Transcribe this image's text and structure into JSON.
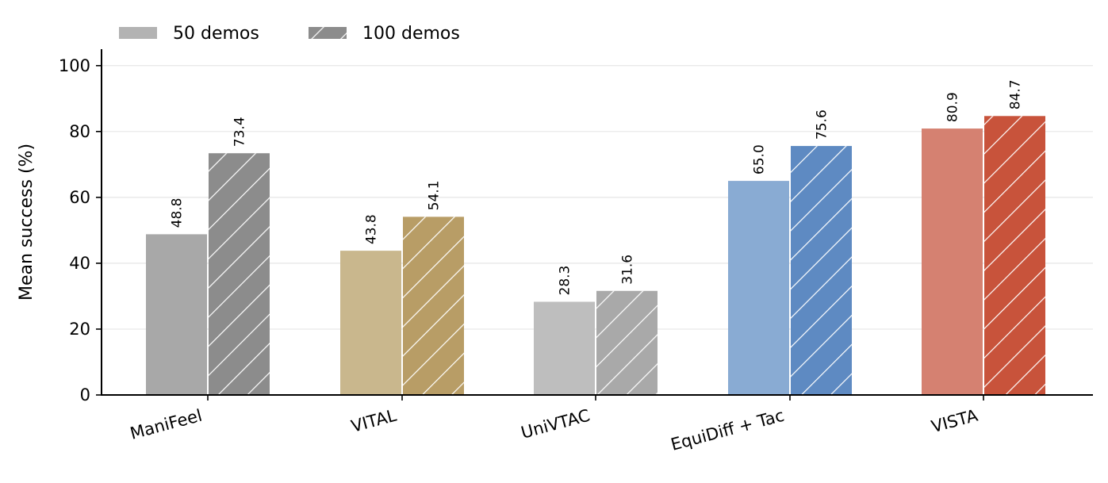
{
  "chart_data": {
    "type": "bar",
    "categories": [
      "ManiFeel",
      "VITAL",
      "UniVTAC",
      "EquiDiff + Tac",
      "VISTA"
    ],
    "series": [
      {
        "name": "50 demos",
        "values": [
          48.8,
          43.8,
          28.3,
          65.0,
          80.9
        ],
        "pattern": "solid"
      },
      {
        "name": "100 demos",
        "values": [
          73.4,
          54.1,
          31.6,
          75.6,
          84.7
        ],
        "pattern": "hatched"
      }
    ],
    "data_labels": {
      "50 demos": [
        "48.8",
        "43.8",
        "28.3",
        "65.0",
        "80.9"
      ],
      "100 demos": [
        "73.4",
        "54.1",
        "31.6",
        "75.6",
        "84.7"
      ]
    },
    "category_colors": {
      "50 demos": [
        "#a8a8a8",
        "#c9b78d",
        "#bebebe",
        "#89abd3",
        "#d58171"
      ],
      "100 demos": [
        "#8c8c8c",
        "#b89d66",
        "#a9a9a9",
        "#5e8ac2",
        "#c8533b"
      ]
    },
    "legend_swatch_colors": {
      "50 demos": "#b3b3b3",
      "100 demos": "#8c8c8c"
    },
    "title": "",
    "xlabel": "",
    "ylabel": "Mean success (%)",
    "ylim": [
      0,
      105
    ],
    "yticks": [
      0,
      20,
      40,
      60,
      80,
      100
    ],
    "ytick_labels": [
      "0",
      "20",
      "40",
      "60",
      "80",
      "100"
    ],
    "grid": "horizontal",
    "legend": {
      "placement": "top-left",
      "orientation": "horizontal"
    }
  }
}
